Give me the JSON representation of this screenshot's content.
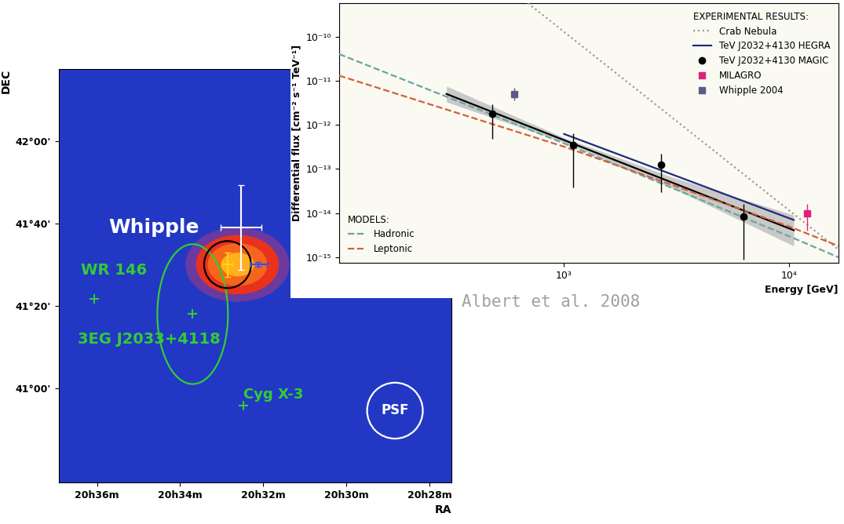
{
  "chart_data": [
    {
      "type": "map",
      "x_label": "RA",
      "y_label": "DEC",
      "xlim": [
        36.92,
        27.47
      ],
      "ylim": [
        40.62,
        42.29
      ],
      "xticks": [
        {
          "value": 36,
          "label": "20h36m"
        },
        {
          "value": 34,
          "label": "20h34m"
        },
        {
          "value": 32,
          "label": "20h32m"
        },
        {
          "value": 30,
          "label": "20h30m"
        },
        {
          "value": 28,
          "label": "20h28m"
        }
      ],
      "yticks": [
        {
          "value": 41.0,
          "label": "41°00'"
        },
        {
          "value": 41.333,
          "label": "41°20'"
        },
        {
          "value": 41.667,
          "label": "41°40'"
        },
        {
          "value": 42.0,
          "label": "42°00'"
        }
      ],
      "grid": false,
      "excess": {
        "ra": 32.62,
        "dec": 41.5,
        "width": 2.0,
        "height": 0.24
      },
      "sources": [
        {
          "name": "Whipple",
          "ra": 32.54,
          "dec": 41.65,
          "ra_err": 0.49,
          "dec_err": 0.17,
          "color": "#ffffff",
          "marker": "plus"
        },
        {
          "name": "WR 146",
          "ra": 36.07,
          "dec": 41.36,
          "color": "#33cc33",
          "marker": "plus"
        },
        {
          "name": "3EG J2033+4118",
          "ra": 33.7,
          "dec": 41.3,
          "color": "#33cc33",
          "marker": "plus"
        },
        {
          "name": "Cyg X-3",
          "ra": 32.47,
          "dec": 40.93,
          "color": "#33cc33",
          "marker": "plus"
        },
        {
          "ra": 32.86,
          "dec": 41.5,
          "ra_err": 0.12,
          "dec_err": 0.05,
          "color": "#ffd700",
          "marker": "plus"
        },
        {
          "ra": 32.11,
          "dec": 41.5,
          "ra_err": 0.2,
          "dec_err": 0.01,
          "color": "#3050ff",
          "marker": "plus"
        }
      ],
      "regions": [
        {
          "ra": 33.7,
          "dec": 41.3,
          "width": 1.7,
          "height": 0.565,
          "color": "#33cc33"
        },
        {
          "ra": 32.86,
          "dec": 41.5,
          "width": 1.13,
          "height": 0.19,
          "color": "#000000"
        },
        {
          "name": "PSF",
          "ra": 28.83,
          "dec": 40.91,
          "width": 1.34,
          "height": 0.226,
          "color": "#ffffff"
        }
      ]
    },
    {
      "type": "line",
      "x_label": "Energy [GeV]",
      "y_label": "Differential flux [cm⁻² s⁻¹ TeV⁻¹]",
      "source": "Albert et al. 2008",
      "log": true,
      "grid": false,
      "xlim": [
        100,
        16600
      ],
      "ylim": [
        7.5e-16,
        5.7e-10
      ],
      "xticks": [
        {
          "value": 1000,
          "label": "10³"
        },
        {
          "value": 10000,
          "label": "10⁴"
        }
      ],
      "yticks": [
        {
          "value": 1e-15,
          "label": "10⁻¹⁵"
        },
        {
          "value": 1e-14,
          "label": "10⁻¹⁴"
        },
        {
          "value": 1e-13,
          "label": "10⁻¹³"
        },
        {
          "value": 1e-12,
          "label": "10⁻¹²"
        },
        {
          "value": 1e-11,
          "label": "10⁻¹¹"
        },
        {
          "value": 1e-10,
          "label": "10⁻¹⁰"
        }
      ],
      "groups": [
        {
          "title": "EXPERIMENTAL RESULTS:",
          "legend": "upper right",
          "series": [
            {
              "name": "Crab Nebula",
              "type": "line",
              "line_style": "dotted",
              "color": "#999999",
              "x": [
                690,
                16600
              ],
              "values": [
                5.7e-10,
                1.5e-15
              ]
            },
            {
              "name": "TeV J2032+4130 HEGRA",
              "type": "line",
              "line_style": "solid",
              "color": "#1f2a80",
              "x": [
                1000,
                10500
              ],
              "values": [
                6.2e-13,
                7e-15
              ]
            },
            {
              "name": "TeV J2032+4130 MAGIC",
              "type": "scatter",
              "marker": "circle",
              "color": "#000000",
              "x": [
                480,
                1100,
                2700,
                6300
              ],
              "values": [
                1.8e-12,
                3.5e-13,
                1.25e-13,
                8.5e-15
              ],
              "y_low": [
                4.8e-13,
                3.8e-14,
                3e-14,
                9e-16
              ],
              "y_high": [
                2.9e-12,
                6.5e-13,
                2.2e-13,
                1.6e-14
              ],
              "fit": {
                "x": [
                  300,
                  1000,
                  3000,
                  10500
                ],
                "values": [
                  5e-12,
                  4.5e-13,
                  5e-14,
                  4.1e-15
                ],
                "band_low": [
                  3.3e-12,
                  4e-13,
                  3.8e-14,
                  1.8e-15
                ],
                "band_high": [
                  7.5e-12,
                  5.1e-13,
                  6.6e-14,
                  9e-15
                ]
              }
            },
            {
              "name": "MILAGRO",
              "type": "scatter",
              "marker": "square",
              "color": "#e0207f",
              "x": [
                12000
              ],
              "values": [
                1e-14
              ],
              "y_low": [
                4e-15
              ],
              "y_high": [
                1.6e-14
              ]
            },
            {
              "name": "Whipple 2004",
              "type": "scatter",
              "marker": "square",
              "color": "#5a5a8c",
              "x": [
                600
              ],
              "values": [
                5e-12
              ],
              "y_low": [
                3.5e-12
              ],
              "y_high": [
                7e-12
              ]
            }
          ]
        },
        {
          "title": "MODELS:",
          "legend": "lower left",
          "series": [
            {
              "name": "Hadronic",
              "type": "line",
              "line_style": "dashed",
              "color": "#6aa5a0",
              "x": [
                100,
                1000,
                10000,
                16600
              ],
              "values": [
                4e-11,
                3.8e-13,
                3e-15,
                1e-15
              ]
            },
            {
              "name": "Leptonic",
              "type": "line",
              "line_style": "dashed",
              "color": "#d2603a",
              "x": [
                100,
                1000,
                10000,
                16600
              ],
              "values": [
                1.3e-11,
                3.2e-13,
                5e-15,
                1.8e-15
              ]
            }
          ]
        }
      ]
    }
  ]
}
